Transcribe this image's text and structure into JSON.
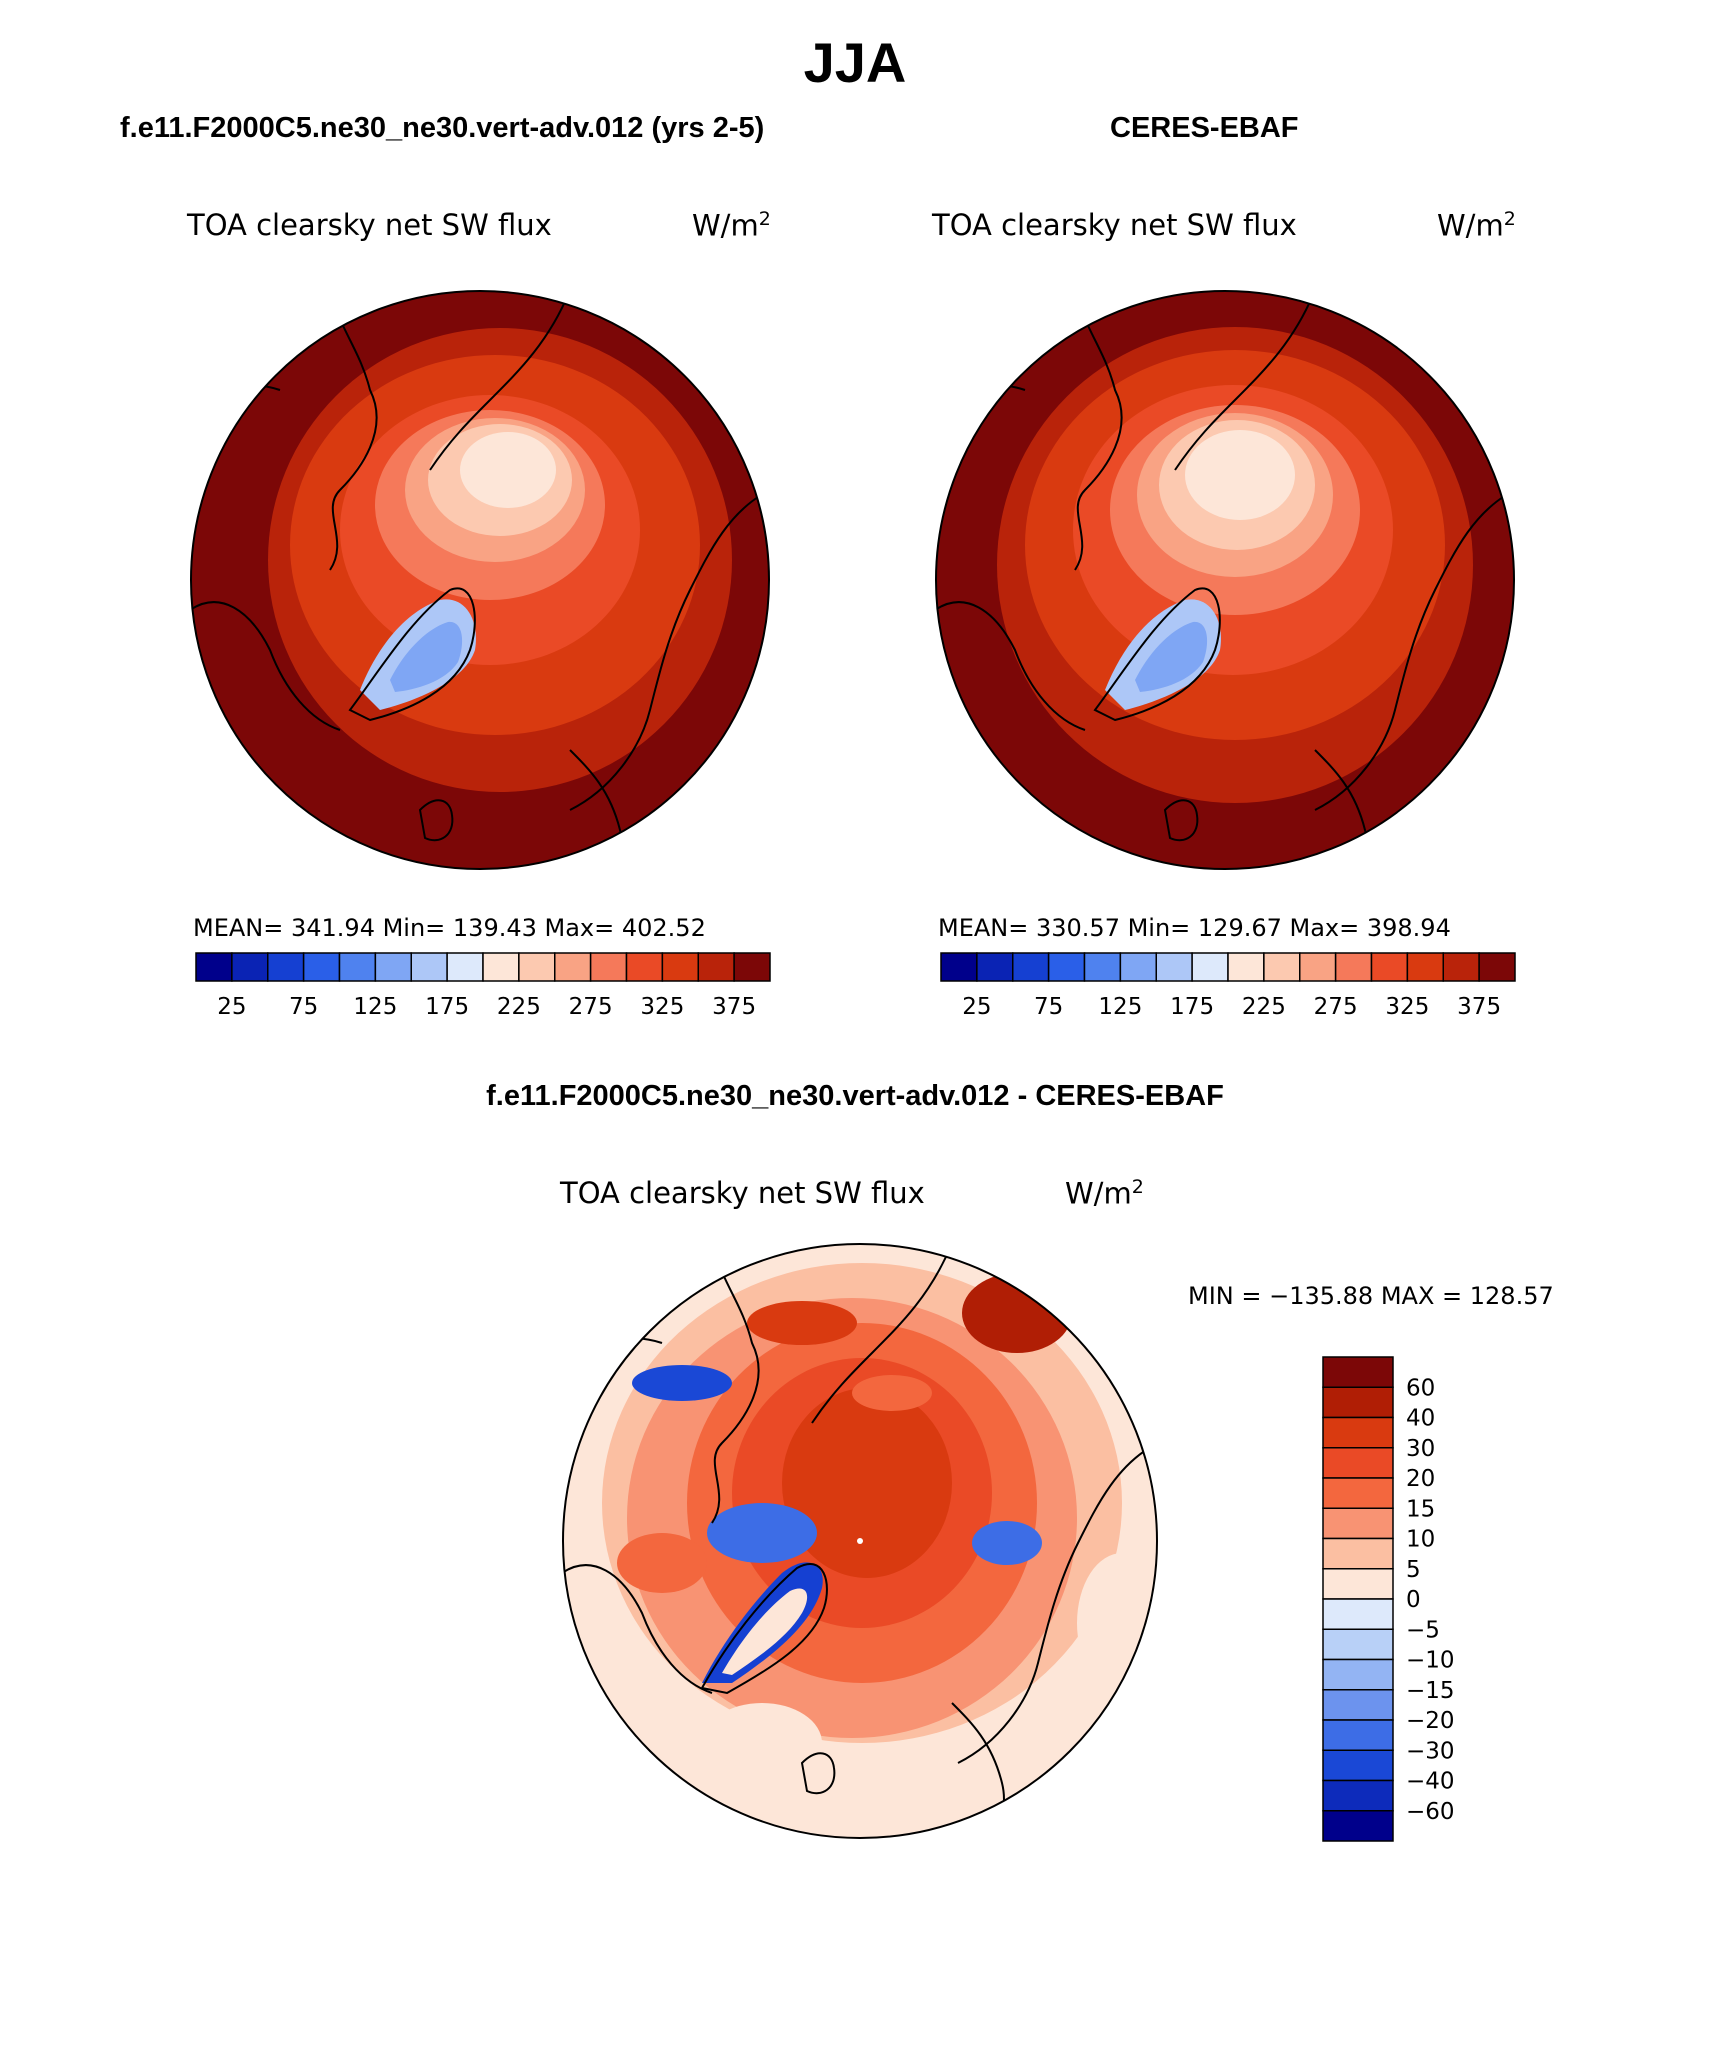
{
  "page": {
    "season": "JJA",
    "left_panel": {
      "title": "f.e11.F2000C5.ne30_ne30.vert-adv.012 (yrs 2-5)",
      "variable": "TOA clearsky net SW flux",
      "units_base": "W/m",
      "units_exp": "2",
      "stats": "MEAN= 341.94   Min= 139.43   Max= 402.52"
    },
    "right_panel": {
      "title": "CERES-EBAF",
      "variable": "TOA clearsky net SW flux",
      "units_base": "W/m",
      "units_exp": "2",
      "stats": "MEAN= 330.57   Min= 129.67   Max= 398.94"
    },
    "diff_panel": {
      "title": "f.e11.F2000C5.ne30_ne30.vert-adv.012 - CERES-EBAF",
      "variable": "TOA clearsky net SW flux",
      "units_base": "W/m",
      "units_exp": "2",
      "minmax": "MIN = −135.88  MAX = 128.57"
    },
    "abs_colorbar": {
      "colors": [
        "#00008b",
        "#0a23b4",
        "#1540d2",
        "#2a5fe8",
        "#4f82ef",
        "#7fa6f4",
        "#adc7f7",
        "#dde9fb",
        "#fde6d8",
        "#fcc9b0",
        "#f9a384",
        "#f5795a",
        "#ea4a26",
        "#d93a10",
        "#b9230a",
        "#7c0707"
      ],
      "labels": [
        "25",
        "75",
        "125",
        "175",
        "225",
        "275",
        "325",
        "375"
      ]
    },
    "diff_colorbar": {
      "colors": [
        "#7c0707",
        "#b01e05",
        "#d93a10",
        "#ea4a26",
        "#f3673e",
        "#f89373",
        "#fbbfa2",
        "#fde6d8",
        "#dde9fb",
        "#b8d0f7",
        "#93b4f3",
        "#6c93ee",
        "#3d6de6",
        "#1a48d6",
        "#0d2bbb",
        "#00008b"
      ],
      "labels": [
        "60",
        "40",
        "30",
        "20",
        "15",
        "10",
        "5",
        "0",
        "−5",
        "−10",
        "−15",
        "−20",
        "−30",
        "−40",
        "−60"
      ]
    }
  }
}
